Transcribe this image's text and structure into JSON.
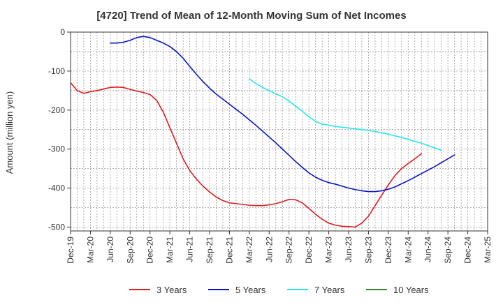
{
  "chart_data": {
    "type": "line",
    "title": "[4720]  Trend of Mean of 12-Month Moving Sum of Net Incomes",
    "ylabel": "Amount (million yen)",
    "xlabel": "",
    "ylim": [
      -510,
      0
    ],
    "yticks": [
      0,
      -100,
      -200,
      -300,
      -400,
      -500
    ],
    "x_tick_labels": [
      "Dec-19",
      "Mar-20",
      "Jun-20",
      "Sep-20",
      "Dec-20",
      "Mar-21",
      "Jun-21",
      "Sep-21",
      "Dec-21",
      "Mar-22",
      "Jun-22",
      "Sep-22",
      "Dec-22",
      "Mar-23",
      "Jun-23",
      "Sep-23",
      "Dec-23",
      "Mar-24",
      "Jun-24",
      "Sep-24",
      "Dec-24",
      "Mar-25"
    ],
    "grid": true,
    "legend_position": "bottom",
    "series": [
      {
        "name": "3 Years",
        "color": "#e31a1c",
        "start_index": 0,
        "values": [
          -130,
          -150,
          -157,
          -153,
          -150,
          -146,
          -142,
          -141,
          -142,
          -147,
          -151,
          -155,
          -160,
          -175,
          -205,
          -245,
          -285,
          -325,
          -355,
          -377,
          -395,
          -410,
          -423,
          -432,
          -438,
          -440,
          -442,
          -444,
          -445,
          -445,
          -443,
          -440,
          -435,
          -429,
          -430,
          -438,
          -452,
          -467,
          -480,
          -490,
          -495,
          -498,
          -499,
          -500,
          -490,
          -472,
          -445,
          -418,
          -392,
          -368,
          -350,
          -337,
          -325,
          -312
        ]
      },
      {
        "name": "5 Years",
        "color": "#0a14c8",
        "start_index": 6,
        "values": [
          -28,
          -28,
          -26,
          -21,
          -14,
          -11,
          -14,
          -21,
          -28,
          -37,
          -50,
          -67,
          -88,
          -108,
          -127,
          -144,
          -159,
          -172,
          -185,
          -198,
          -211,
          -225,
          -239,
          -254,
          -269,
          -284,
          -300,
          -316,
          -332,
          -347,
          -361,
          -372,
          -380,
          -386,
          -390,
          -395,
          -400,
          -404,
          -407,
          -409,
          -409,
          -407,
          -403,
          -397,
          -389,
          -381,
          -372,
          -363,
          -354,
          -345,
          -335,
          -325,
          -315
        ]
      },
      {
        "name": "7 Years",
        "color": "#22e8ee",
        "start_index": 27,
        "values": [
          -120,
          -132,
          -142,
          -150,
          -158,
          -166,
          -177,
          -190,
          -203,
          -217,
          -229,
          -236,
          -239,
          -242,
          -244,
          -246,
          -248,
          -250,
          -252,
          -255,
          -258,
          -262,
          -266,
          -270,
          -275,
          -280,
          -285,
          -291,
          -297,
          -303
        ]
      },
      {
        "name": "10 Years",
        "color": "#2e8b2e",
        "start_index": 0,
        "values": []
      }
    ]
  }
}
